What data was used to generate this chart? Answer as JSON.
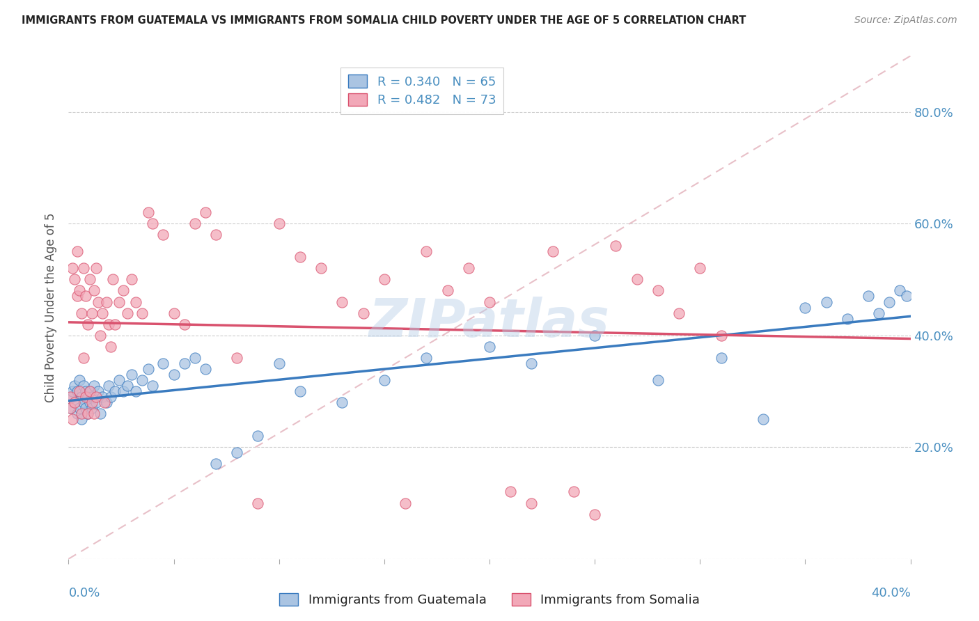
{
  "title": "IMMIGRANTS FROM GUATEMALA VS IMMIGRANTS FROM SOMALIA CHILD POVERTY UNDER THE AGE OF 5 CORRELATION CHART",
  "source": "Source: ZipAtlas.com",
  "ylabel": "Child Poverty Under the Age of 5",
  "right_yticklabels": [
    "",
    "20.0%",
    "40.0%",
    "60.0%",
    "80.0%"
  ],
  "xlim": [
    0.0,
    0.4
  ],
  "ylim": [
    0.0,
    0.9
  ],
  "legend_r1": "R = 0.340",
  "legend_n1": "N = 65",
  "legend_r2": "R = 0.482",
  "legend_n2": "N = 73",
  "legend_label1": "Immigrants from Guatemala",
  "legend_label2": "Immigrants from Somalia",
  "blue_scatter_color": "#aac4e2",
  "pink_scatter_color": "#f2a8b8",
  "blue_line_color": "#3a7bbf",
  "pink_line_color": "#d9526e",
  "ref_line_color": "#e8c0c8",
  "watermark": "ZIPatlas",
  "guatemala_x": [
    0.001,
    0.002,
    0.002,
    0.003,
    0.003,
    0.004,
    0.004,
    0.005,
    0.005,
    0.006,
    0.006,
    0.007,
    0.007,
    0.008,
    0.008,
    0.009,
    0.009,
    0.01,
    0.01,
    0.011,
    0.011,
    0.012,
    0.013,
    0.014,
    0.015,
    0.016,
    0.018,
    0.019,
    0.02,
    0.022,
    0.024,
    0.026,
    0.028,
    0.03,
    0.032,
    0.035,
    0.038,
    0.04,
    0.045,
    0.05,
    0.055,
    0.06,
    0.065,
    0.07,
    0.08,
    0.09,
    0.1,
    0.11,
    0.13,
    0.15,
    0.17,
    0.2,
    0.22,
    0.25,
    0.28,
    0.31,
    0.33,
    0.35,
    0.36,
    0.37,
    0.38,
    0.385,
    0.39,
    0.395,
    0.398
  ],
  "guatemala_y": [
    0.27,
    0.29,
    0.3,
    0.28,
    0.31,
    0.26,
    0.3,
    0.27,
    0.32,
    0.29,
    0.25,
    0.28,
    0.31,
    0.27,
    0.3,
    0.29,
    0.26,
    0.28,
    0.3,
    0.27,
    0.29,
    0.31,
    0.28,
    0.3,
    0.26,
    0.29,
    0.28,
    0.31,
    0.29,
    0.3,
    0.32,
    0.3,
    0.31,
    0.33,
    0.3,
    0.32,
    0.34,
    0.31,
    0.35,
    0.33,
    0.35,
    0.36,
    0.34,
    0.17,
    0.19,
    0.22,
    0.35,
    0.3,
    0.28,
    0.32,
    0.36,
    0.38,
    0.35,
    0.4,
    0.32,
    0.36,
    0.25,
    0.45,
    0.46,
    0.43,
    0.47,
    0.44,
    0.46,
    0.48,
    0.47
  ],
  "somalia_x": [
    0.001,
    0.001,
    0.002,
    0.002,
    0.003,
    0.003,
    0.004,
    0.004,
    0.005,
    0.005,
    0.006,
    0.006,
    0.007,
    0.007,
    0.008,
    0.008,
    0.009,
    0.009,
    0.01,
    0.01,
    0.011,
    0.011,
    0.012,
    0.012,
    0.013,
    0.013,
    0.014,
    0.015,
    0.016,
    0.017,
    0.018,
    0.019,
    0.02,
    0.021,
    0.022,
    0.024,
    0.026,
    0.028,
    0.03,
    0.032,
    0.035,
    0.038,
    0.04,
    0.045,
    0.05,
    0.055,
    0.06,
    0.065,
    0.07,
    0.08,
    0.09,
    0.1,
    0.11,
    0.12,
    0.13,
    0.14,
    0.15,
    0.16,
    0.17,
    0.18,
    0.19,
    0.2,
    0.21,
    0.22,
    0.23,
    0.24,
    0.25,
    0.26,
    0.27,
    0.28,
    0.29,
    0.3,
    0.31
  ],
  "somalia_y": [
    0.27,
    0.29,
    0.25,
    0.52,
    0.5,
    0.28,
    0.55,
    0.47,
    0.48,
    0.3,
    0.44,
    0.26,
    0.52,
    0.36,
    0.47,
    0.29,
    0.42,
    0.26,
    0.5,
    0.3,
    0.44,
    0.28,
    0.48,
    0.26,
    0.52,
    0.29,
    0.46,
    0.4,
    0.44,
    0.28,
    0.46,
    0.42,
    0.38,
    0.5,
    0.42,
    0.46,
    0.48,
    0.44,
    0.5,
    0.46,
    0.44,
    0.62,
    0.6,
    0.58,
    0.44,
    0.42,
    0.6,
    0.62,
    0.58,
    0.36,
    0.1,
    0.6,
    0.54,
    0.52,
    0.46,
    0.44,
    0.5,
    0.1,
    0.55,
    0.48,
    0.52,
    0.46,
    0.12,
    0.1,
    0.55,
    0.12,
    0.08,
    0.56,
    0.5,
    0.48,
    0.44,
    0.52,
    0.4
  ]
}
